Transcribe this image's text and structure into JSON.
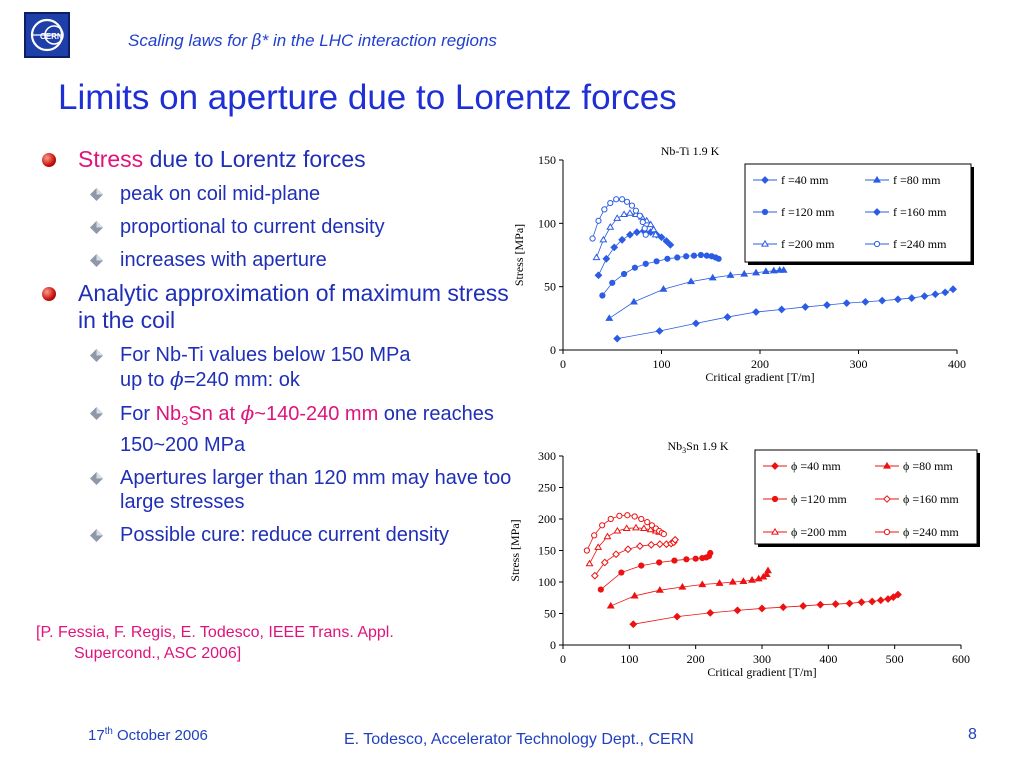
{
  "header": {
    "subtitle_pre": "Scaling laws for ",
    "subtitle_beta": "β",
    "subtitle_post": "* in the LHC interaction regions",
    "logo_text": "CERN"
  },
  "title": "Limits on aperture due to Lorentz forces",
  "bullets": {
    "b1_hl": "Stress",
    "b1_rest": " due to Lorentz forces",
    "b1_sub": [
      "peak on coil mid-plane",
      "proportional to current density",
      "increases with aperture"
    ],
    "b2": "Analytic approximation of maximum stress in the coil",
    "b2_s1_line1": "For Nb-Ti values below 150 MPa",
    "b2_s1_pre": "up to ",
    "phi": "ϕ",
    "b2_s1_post": "=240 mm: ok",
    "b2_s2_pre": "For ",
    "b2_s2_nb": "Nb",
    "b2_s2_sub3": "3",
    "b2_s2_sn": "Sn at ",
    "b2_s2_range": "~140-240 mm",
    "b2_s2_post": " one reaches 150~200 MPa",
    "b2_s3": "Apertures larger than 120 mm may have too large stresses",
    "b2_s4": "Possible cure: reduce current density"
  },
  "reference": {
    "line1": "[P. Fessia, F. Regis, E. Todesco, IEEE Trans. Appl.",
    "line2": "Supercond., ASC 2006]"
  },
  "footer": {
    "date_day": "17",
    "date_sup": "th",
    "date_rest": " October 2006",
    "author": "E. Todesco, Accelerator Technology Dept., CERN",
    "page": "8"
  },
  "chart_data": [
    {
      "type": "scatter",
      "title": "Nb-Ti 1.9 K",
      "xlabel": "Critical gradient [T/m]",
      "ylabel": "Stress [MPa]",
      "xlim": [
        0,
        400
      ],
      "ylim": [
        0,
        150
      ],
      "xticks": [
        0,
        100,
        200,
        300,
        400
      ],
      "yticks": [
        0,
        50,
        100,
        150
      ],
      "grid": false,
      "legend_position": "top-right",
      "series": [
        {
          "name": "f =40 mm",
          "marker": "diamond",
          "filled": true,
          "color": "#2b5ce6",
          "x": [
            55,
            98,
            135,
            167,
            196,
            222,
            246,
            268,
            288,
            307,
            324,
            340,
            354,
            367,
            378,
            388,
            396
          ],
          "y": [
            9,
            15,
            21,
            26,
            30,
            32,
            34,
            35.5,
            37,
            38,
            39,
            40,
            41,
            42.5,
            44,
            45.5,
            48
          ]
        },
        {
          "name": "f =80 mm",
          "marker": "triangle",
          "filled": true,
          "color": "#2b5ce6",
          "x": [
            47,
            72,
            102,
            130,
            152,
            170,
            184,
            196,
            206,
            214,
            220,
            224
          ],
          "y": [
            25,
            38,
            48,
            54,
            57,
            59,
            60,
            61,
            62,
            62.5,
            63,
            63
          ]
        },
        {
          "name": "f =120 mm",
          "marker": "circle",
          "filled": true,
          "color": "#2b5ce6",
          "x": [
            40,
            50,
            62,
            73,
            84,
            95,
            106,
            116,
            125,
            133,
            140,
            146,
            151,
            155,
            158
          ],
          "y": [
            43,
            53,
            60,
            65,
            68,
            70,
            72,
            73,
            74,
            74.5,
            75,
            74.5,
            74,
            73,
            72
          ]
        },
        {
          "name": "f =160 mm",
          "marker": "diamond",
          "filled": true,
          "color": "#2b5ce6",
          "x": [
            36,
            44,
            52,
            60,
            68,
            75,
            82,
            89,
            95,
            100,
            105,
            109
          ],
          "y": [
            59,
            72,
            81,
            87,
            91,
            93,
            94,
            93,
            91,
            89,
            86,
            83
          ]
        },
        {
          "name": "f =200 mm",
          "marker": "triangle",
          "filled": false,
          "color": "#2b5ce6",
          "x": [
            34,
            41,
            48,
            55,
            62,
            68,
            74,
            80,
            85,
            89,
            92,
            94
          ],
          "y": [
            73,
            87,
            97,
            104,
            107,
            108,
            107,
            105,
            102,
            99,
            95,
            91
          ]
        },
        {
          "name": "f =240 mm",
          "marker": "circle",
          "filled": false,
          "color": "#2b5ce6",
          "x": [
            30,
            36,
            42,
            48,
            54,
            60,
            65,
            70,
            74,
            78,
            81,
            83,
            84
          ],
          "y": [
            88,
            102,
            111,
            116,
            119,
            119,
            117,
            114,
            110,
            106,
            101,
            96,
            91
          ]
        }
      ]
    },
    {
      "type": "scatter",
      "title_nb": "Nb",
      "title_sub": "3",
      "title_rest": "Sn 1.9 K",
      "xlabel": "Critical gradient [T/m]",
      "ylabel": "Stress [MPa]",
      "xlim": [
        0,
        600
      ],
      "ylim": [
        0,
        300
      ],
      "xticks": [
        0,
        100,
        200,
        300,
        400,
        500,
        600
      ],
      "yticks": [
        0,
        50,
        100,
        150,
        200,
        250,
        300
      ],
      "grid": false,
      "legend_position": "top-right",
      "series": [
        {
          "name": "ϕ =40 mm",
          "marker": "diamond",
          "filled": true,
          "color": "#ee1111",
          "x": [
            106,
            172,
            222,
            263,
            300,
            332,
            362,
            388,
            411,
            432,
            450,
            466,
            479,
            490,
            498,
            505
          ],
          "y": [
            33,
            45,
            51,
            55,
            58,
            60,
            62,
            64,
            65,
            66,
            68,
            69,
            71,
            73,
            76,
            80
          ]
        },
        {
          "name": "ϕ =80 mm",
          "marker": "triangle",
          "filled": true,
          "color": "#ee1111",
          "x": [
            72,
            108,
            146,
            180,
            210,
            236,
            256,
            272,
            285,
            295,
            302,
            307,
            309
          ],
          "y": [
            62,
            78,
            87,
            92,
            96,
            98,
            100,
            101,
            103,
            105,
            108,
            112,
            118
          ]
        },
        {
          "name": "ϕ =120 mm",
          "marker": "circle",
          "filled": true,
          "color": "#ee1111",
          "x": [
            57,
            88,
            118,
            145,
            168,
            186,
            200,
            210,
            216,
            220,
            222
          ],
          "y": [
            88,
            115,
            126,
            131,
            134,
            136,
            137,
            138,
            139,
            141,
            146
          ]
        },
        {
          "name": "ϕ =160 mm",
          "marker": "diamond",
          "filled": false,
          "color": "#ee1111",
          "x": [
            48,
            63,
            80,
            98,
            116,
            133,
            146,
            156,
            163,
            167,
            169
          ],
          "y": [
            110,
            131,
            144,
            152,
            157,
            159,
            160,
            160,
            161,
            163,
            167
          ]
        },
        {
          "name": "ϕ =200 mm",
          "marker": "triangle",
          "filled": false,
          "color": "#ee1111",
          "x": [
            40,
            53,
            67,
            82,
            96,
            110,
            122,
            132,
            140,
            145
          ],
          "y": [
            129,
            155,
            172,
            181,
            185,
            186,
            185,
            183,
            181,
            179
          ]
        },
        {
          "name": "ϕ =240 mm",
          "marker": "circle",
          "filled": false,
          "color": "#ee1111",
          "x": [
            36,
            47,
            59,
            72,
            85,
            97,
            108,
            118,
            127,
            134,
            140,
            145,
            149,
            152
          ],
          "y": [
            150,
            174,
            190,
            200,
            205,
            206,
            204,
            200,
            195,
            190,
            185,
            181,
            178,
            176
          ]
        }
      ]
    }
  ]
}
